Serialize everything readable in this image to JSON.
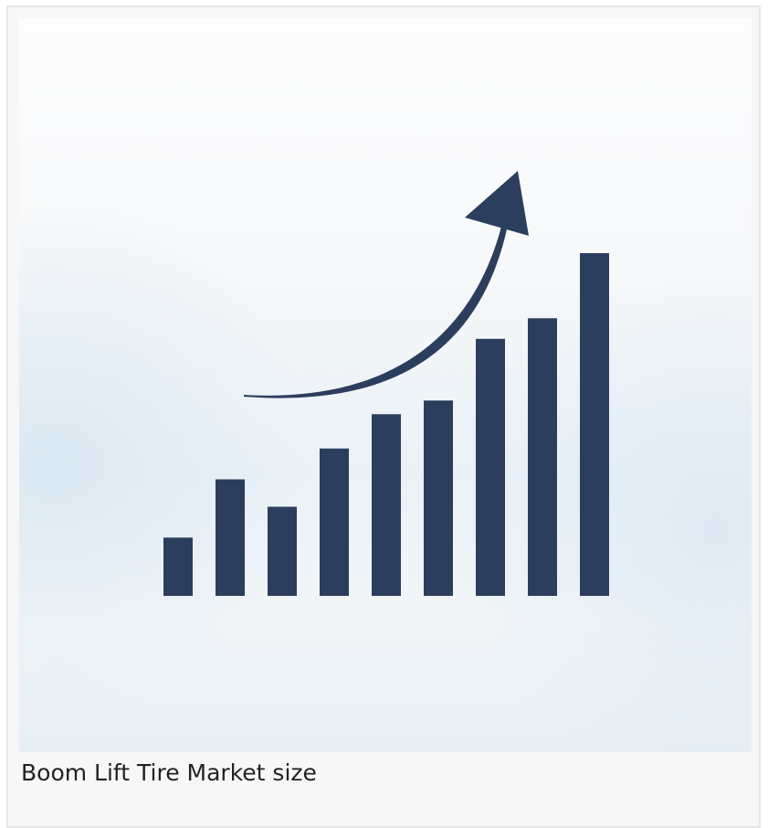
{
  "card": {
    "caption": "Boom Lift Tire Market size"
  },
  "illustration": {
    "icon": "bar-chart-growth-arrow-icon",
    "bar_levels": [
      0.17,
      0.34,
      0.26,
      0.43,
      0.53,
      0.57,
      0.75,
      0.81,
      1.0
    ],
    "bar_color": "#2c3e5e",
    "arrow_color": "#2c3e5e"
  }
}
